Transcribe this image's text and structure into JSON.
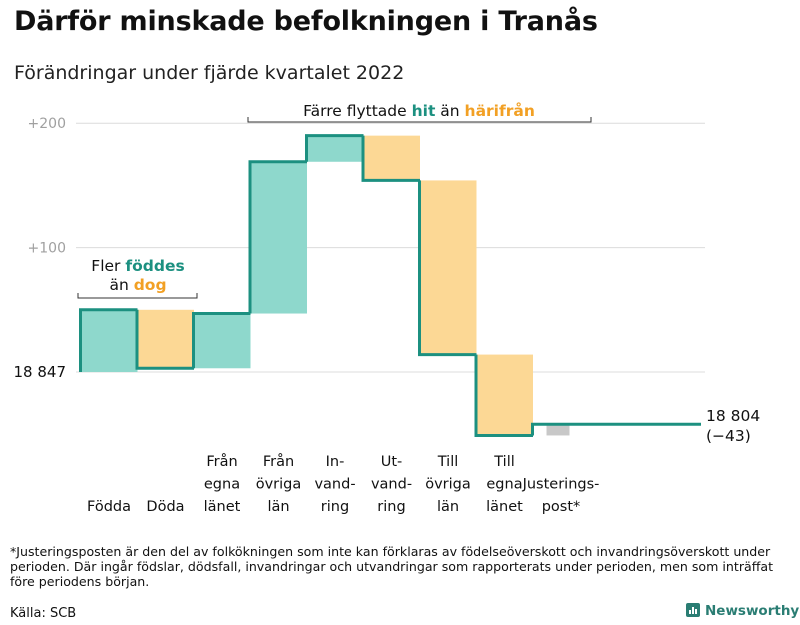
{
  "title": "Därför minskade befolkningen i Tranås",
  "subtitle": "Förändringar under fjärde kvartalet 2022",
  "colors": {
    "in": "#8ed8cc",
    "out": "#fcd895",
    "adjust": "#c8c8c8",
    "line": "#1c9080",
    "hit": "#1c9080",
    "harifran": "#f2a024",
    "grid": "#dcdcdc",
    "tick": "#a0a0a0"
  },
  "chart_data": {
    "type": "waterfall",
    "start_value": 18847,
    "start_label": "18 847",
    "end_value": 18804,
    "end_label": "18 804",
    "end_change_label": "(−43)",
    "y_ticks": [
      {
        "value": 200,
        "label": "+200"
      },
      {
        "value": 100,
        "label": "+100"
      }
    ],
    "ylim": [
      -65,
      200
    ],
    "steps": [
      {
        "label": [
          "Födda"
        ],
        "change": 50,
        "kind": "in"
      },
      {
        "label": [
          "Döda"
        ],
        "change": -47,
        "kind": "out"
      },
      {
        "label": [
          "Från",
          "egna",
          "länet"
        ],
        "change": 44,
        "kind": "in"
      },
      {
        "label": [
          "Från",
          "övriga",
          "län"
        ],
        "change": 122,
        "kind": "in"
      },
      {
        "label": [
          "In-",
          "vand-",
          "ring"
        ],
        "change": 21,
        "kind": "in"
      },
      {
        "label": [
          "Ut-",
          "vand-",
          "ring"
        ],
        "change": -36,
        "kind": "out"
      },
      {
        "label": [
          "Till",
          "övriga",
          "län"
        ],
        "change": -140,
        "kind": "out"
      },
      {
        "label": [
          "Till",
          "egna",
          "länet"
        ],
        "change": -65,
        "kind": "out"
      },
      {
        "label": [
          "Justerings-",
          "post*"
        ],
        "change": 9,
        "kind": "adjust"
      }
    ],
    "annotations": [
      {
        "parts": [
          {
            "text": "Fler ",
            "style": "plain"
          },
          {
            "text": "föddes",
            "style": "hit"
          }
        ],
        "parts2": [
          {
            "text": "än ",
            "style": "plain"
          },
          {
            "text": "dog",
            "style": "harifran"
          }
        ]
      },
      {
        "parts": [
          {
            "text": "Färre flyttade ",
            "style": "plain"
          },
          {
            "text": "hit",
            "style": "hit"
          },
          {
            "text": " än ",
            "style": "plain"
          },
          {
            "text": "härifrån",
            "style": "harifran"
          }
        ]
      }
    ]
  },
  "footnote": "*Justeringsposten är den del av folkökningen som inte kan förklaras av födelseöverskott och invandringsöverskott under perioden. Där ingår födslar, dödsfall, invandringar och utvandringar som rapporterats under perioden, men som inträffat före periodens början.",
  "source": "Källa: SCB",
  "brand": "Newsworthy"
}
